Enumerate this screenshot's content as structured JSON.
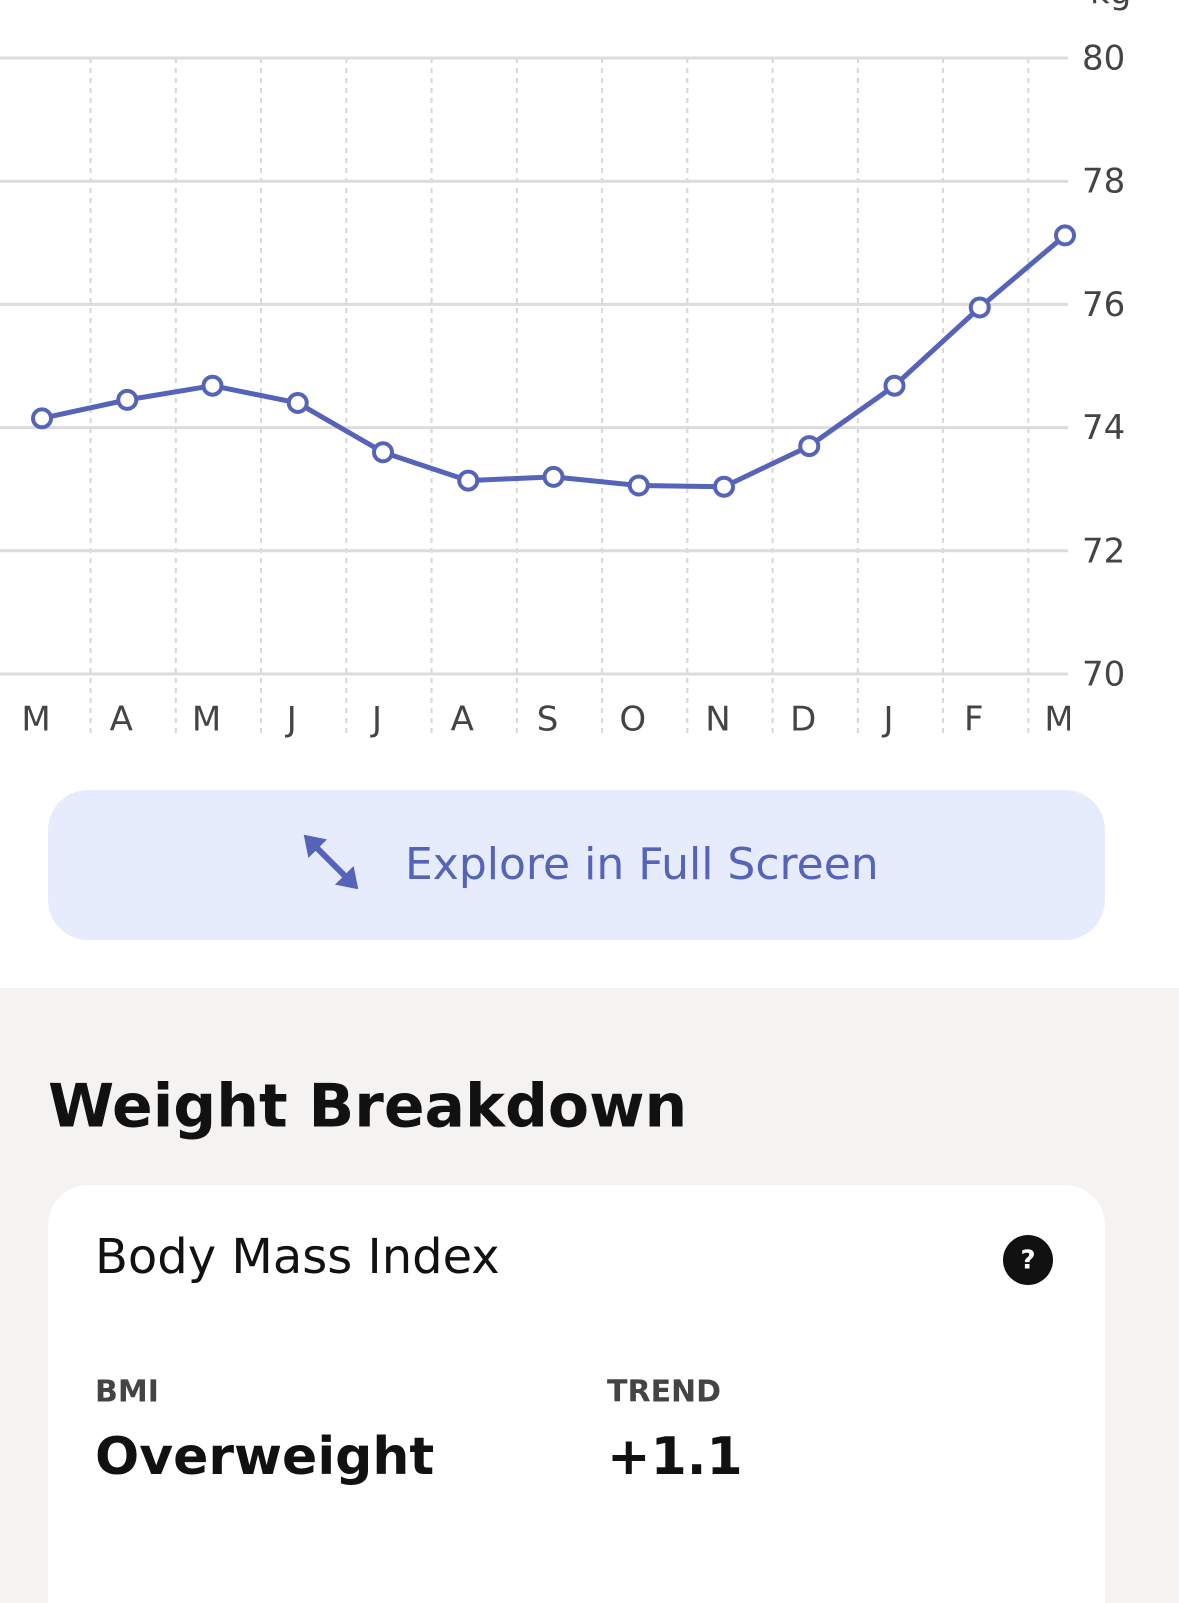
{
  "chart_data": {
    "type": "line",
    "y_label": "kg",
    "categories": [
      "M",
      "A",
      "M",
      "J",
      "J",
      "A",
      "S",
      "O",
      "N",
      "D",
      "J",
      "F",
      "M"
    ],
    "values": [
      74.15,
      74.45,
      74.68,
      74.4,
      73.6,
      73.14,
      73.2,
      73.06,
      73.04,
      73.7,
      74.68,
      75.95,
      77.12
    ],
    "color": "#5563b8",
    "ylim": [
      70,
      80
    ],
    "yticks": [
      70,
      72,
      74,
      76,
      78,
      80
    ],
    "grid": true
  },
  "button": {
    "label": "Explore in Full Screen"
  },
  "section": {
    "title": "Weight Breakdown"
  },
  "card": {
    "title": "Body Mass Index",
    "help": "?",
    "stats": [
      {
        "label": "BMI",
        "value": "Overweight"
      },
      {
        "label": "TREND",
        "value": "+1.1"
      }
    ]
  }
}
